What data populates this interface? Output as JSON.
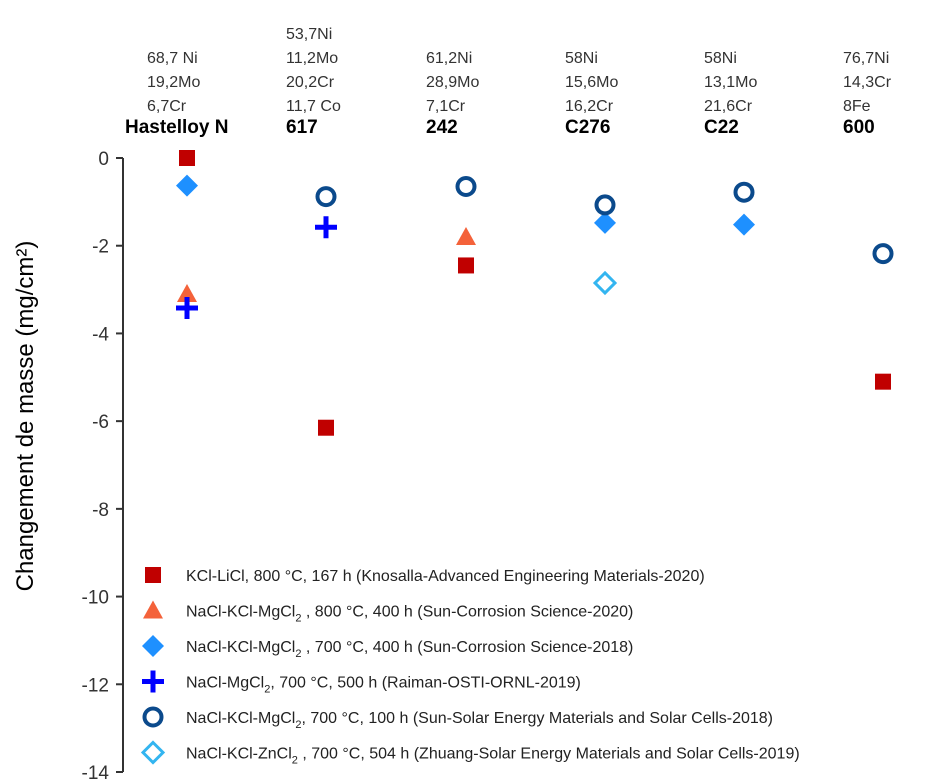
{
  "chart_data": {
    "type": "scatter",
    "ylabel": "Changement de masse (mg/cm²)",
    "ylim": [
      -14,
      0
    ],
    "yticks": [
      0,
      -2,
      -4,
      -6,
      -8,
      -10,
      -12,
      -14
    ],
    "ytick_labels": [
      "0",
      "-2",
      "-4",
      "-6",
      "-8",
      "-10",
      "-12",
      "-14"
    ],
    "categories": [
      "Hastelloy N",
      "617",
      "242",
      "C276",
      "C22",
      "600"
    ],
    "compositions": [
      [
        "68,7 Ni",
        "19,2Mo",
        "6,7Cr"
      ],
      [
        "53,7Ni",
        "11,2Mo",
        "20,2Cr",
        "11,7 Co"
      ],
      [
        "61,2Ni",
        "28,9Mo",
        "7,1Cr"
      ],
      [
        "58Ni",
        "15,6Mo",
        "16,2Cr"
      ],
      [
        "58Ni",
        "13,1Mo",
        "21,6Cr"
      ],
      [
        "76,7Ni",
        "14,3Cr",
        "8Fe"
      ]
    ],
    "series": [
      {
        "name": "KCl-LiCl, 800 °C, 167 h (Knosalla-Advanced Engineering Materials-2020)",
        "legend": {
          "pre": "KCl-LiCl, 800 °C, 167 h (Knosalla-Advanced Engineering Materials-2020)",
          "sub": "",
          "post": ""
        },
        "marker": "square",
        "color": "#c00000",
        "values": [
          0,
          -6.15,
          -2.45,
          null,
          null,
          -5.1
        ]
      },
      {
        "name": "NaCl-KCl-MgCl2 , 800 °C, 400 h (Sun-Corrosion Science-2020)",
        "legend": {
          "pre": "NaCl-KCl-MgCl",
          "sub": "2",
          "post": " , 800 °C, 400 h (Sun-Corrosion Science-2020)"
        },
        "marker": "triangle",
        "color": "#f4623a",
        "values": [
          -3.1,
          null,
          -1.8,
          null,
          null,
          null
        ]
      },
      {
        "name": "NaCl-KCl-MgCl2 , 700 °C, 400 h (Sun-Corrosion Science-2018)",
        "legend": {
          "pre": "NaCl-KCl-MgCl",
          "sub": "2",
          "post": " , 700 °C, 400 h (Sun-Corrosion Science-2018)"
        },
        "marker": "diamond",
        "color": "#1e90ff",
        "values": [
          -0.63,
          null,
          null,
          -1.48,
          -1.52,
          null
        ]
      },
      {
        "name": "NaCl-MgCl2, 700 °C, 500 h (Raiman-OSTI-ORNL-2019)",
        "legend": {
          "pre": "NaCl-MgCl",
          "sub": "2",
          "post": ", 700 °C, 500 h (Raiman-OSTI-ORNL-2019)"
        },
        "marker": "plus",
        "color": "#0000ff",
        "values": [
          -3.42,
          -1.58,
          null,
          null,
          null,
          null
        ]
      },
      {
        "name": "NaCl-KCl-MgCl2, 700 °C, 100 h (Sun-Solar Energy Materials and Solar Cells-2018)",
        "legend": {
          "pre": "NaCl-KCl-MgCl",
          "sub": "2",
          "post": ", 700 °C, 100 h (Sun-Solar Energy Materials and Solar Cells-2018)"
        },
        "marker": "circle",
        "color": "#0b4a8c",
        "values": [
          null,
          -0.88,
          -0.65,
          -1.07,
          -0.78,
          -2.18
        ]
      },
      {
        "name": "NaCl-KCl-ZnCl2 , 700 °C, 504 h (Zhuang-Solar Energy Materials and Solar Cells-2019)",
        "legend": {
          "pre": "NaCl-KCl-ZnCl",
          "sub": "2",
          "post": " , 700 °C, 504 h (Zhuang-Solar Energy Materials and Solar Cells-2019)"
        },
        "marker": "open-diamond",
        "color": "#33b5f0",
        "values": [
          null,
          null,
          null,
          -2.85,
          null,
          null
        ]
      }
    ]
  }
}
